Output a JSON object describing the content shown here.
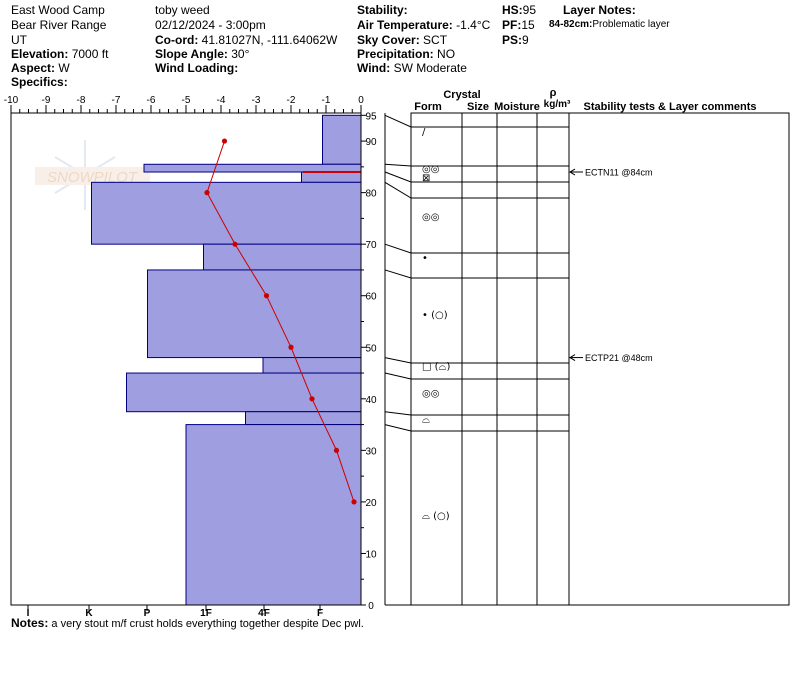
{
  "header": {
    "location": "East Wood Camp",
    "range": "Bear River Range",
    "state": "UT",
    "elevation_label": "Elevation:",
    "elevation": "7000 ft",
    "aspect_label": "Aspect:",
    "aspect": "W",
    "specifics_label": "Specifics:",
    "observer": "toby weed",
    "datetime": "02/12/2024 - 3:00pm",
    "coord_label": "Co-ord:",
    "coord": "41.81027N, -111.64062W",
    "slope_label": "Slope Angle:",
    "slope": "30°",
    "wind_loading_label": "Wind Loading:",
    "stability_label": "Stability:",
    "air_temp_label": "Air Temperature:",
    "air_temp": "-1.4°C",
    "sky_label": "Sky Cover:",
    "sky": "SCT",
    "precip_label": "Precipitation:",
    "precip": "NO",
    "wind_label": "Wind:",
    "wind": "SW Moderate",
    "hs_label": "HS:",
    "hs": "95",
    "pf_label": "PF:",
    "pf": "15",
    "ps_label": "PS:",
    "ps": "9",
    "layer_notes_label": "Layer Notes:",
    "layer_note_range": "84-82cm:",
    "layer_note_text": "Problematic layer"
  },
  "watermark": "SNOWPILOT",
  "columns": {
    "crystal": "Crystal",
    "form": "Form",
    "size": "Size",
    "moisture": "Moisture",
    "rho": "ρ",
    "density_unit": "kg/m³",
    "stability": "Stability tests & Layer comments"
  },
  "tests": [
    {
      "label": "ECTN11 @84cm",
      "depth": 84
    },
    {
      "label": "ECTP21 @48cm",
      "depth": 48
    }
  ],
  "notes_label": "Notes:",
  "notes_text": "a very stout m/f crust holds everything together despite Dec pwl.",
  "colors": {
    "hardness_fill": "#9e9ee0",
    "hardness_stroke": "#000080",
    "temp_line": "#cc0000"
  },
  "chart_data": {
    "type": "snow-profile",
    "temp_axis_ticks": [
      "-10",
      "-9",
      "-8",
      "-7",
      "-6",
      "-5",
      "-4",
      "-3",
      "-2",
      "-1",
      "0"
    ],
    "temp_range": [
      -10,
      0
    ],
    "hardness_ticks": [
      "I",
      "K",
      "P",
      "1F",
      "4F",
      "F"
    ],
    "depth_ticks": [
      "0",
      "10",
      "20",
      "30",
      "40",
      "50",
      "60",
      "70",
      "80",
      "90",
      "95"
    ],
    "depth_range": [
      0,
      97
    ],
    "hardness_layers": [
      {
        "top": 95,
        "bottom": 85.5,
        "hardness_temp": -1.1
      },
      {
        "top": 85.5,
        "bottom": 84,
        "hardness_temp": -6.2
      },
      {
        "top": 84,
        "bottom": 82,
        "hardness_temp": -1.7
      },
      {
        "top": 82,
        "bottom": 70,
        "hardness_temp": -7.7
      },
      {
        "top": 70,
        "bottom": 65,
        "hardness_temp": -4.5
      },
      {
        "top": 65,
        "bottom": 48,
        "hardness_temp": -6.1
      },
      {
        "top": 48,
        "bottom": 45,
        "hardness_temp": -2.8
      },
      {
        "top": 45,
        "bottom": 37.5,
        "hardness_temp": -6.7
      },
      {
        "top": 37.5,
        "bottom": 35,
        "hardness_temp": -3.3
      },
      {
        "top": 35,
        "bottom": 0,
        "hardness_temp": -5.0
      }
    ],
    "temperature_profile": [
      {
        "depth": 90,
        "temp": -3.9
      },
      {
        "depth": 80,
        "temp": -4.4
      },
      {
        "depth": 70,
        "temp": -3.6
      },
      {
        "depth": 60,
        "temp": -2.7
      },
      {
        "depth": 50,
        "temp": -2.0
      },
      {
        "depth": 40,
        "temp": -1.4
      },
      {
        "depth": 30,
        "temp": -0.7
      },
      {
        "depth": 20,
        "temp": -0.2
      }
    ],
    "layer_boundaries": [
      95,
      85.5,
      84,
      82,
      70,
      65,
      48,
      45,
      37.5,
      35,
      0
    ],
    "crystal_forms": [
      {
        "depth": 92,
        "symbol": "/"
      },
      {
        "depth": 84.8,
        "symbol": "◎◎"
      },
      {
        "depth": 83,
        "symbol": "⊠"
      },
      {
        "depth": 75.5,
        "symbol": "◎◎"
      },
      {
        "depth": 67.5,
        "symbol": "•"
      },
      {
        "depth": 56.5,
        "symbol": "• (○)"
      },
      {
        "depth": 46.5,
        "symbol": "□ (⌓)"
      },
      {
        "depth": 41.2,
        "symbol": "◎◎"
      },
      {
        "depth": 36.2,
        "symbol": "⌓"
      },
      {
        "depth": 17.5,
        "symbol": "⌓ (○)"
      }
    ]
  }
}
